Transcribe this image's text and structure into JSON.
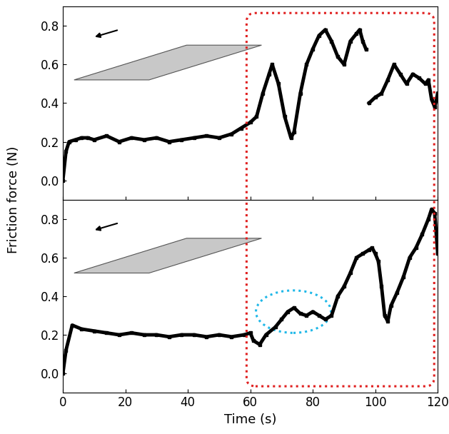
{
  "chart_data": [
    {
      "type": "line",
      "ylabel": "Friction force (N)",
      "tick_labels": "y",
      "color": "#000000",
      "marker": "square",
      "x": [
        0,
        1,
        2,
        4,
        6,
        8,
        10,
        14,
        18,
        22,
        26,
        30,
        34,
        38,
        42,
        46,
        50,
        54,
        57,
        60,
        62,
        64,
        66,
        67,
        69,
        71,
        73,
        74,
        76,
        78,
        80,
        82,
        84,
        86,
        88,
        90,
        92,
        94,
        95,
        96,
        97,
        97.5,
        98,
        100,
        102,
        104,
        106,
        108,
        110,
        112,
        114,
        116,
        117,
        118,
        119,
        120
      ],
      "values": [
        0.0,
        0.15,
        0.2,
        0.21,
        0.22,
        0.22,
        0.21,
        0.23,
        0.2,
        0.22,
        0.21,
        0.22,
        0.2,
        0.21,
        0.22,
        0.23,
        0.22,
        0.24,
        0.27,
        0.3,
        0.33,
        0.45,
        0.55,
        0.6,
        0.5,
        0.33,
        0.22,
        0.25,
        0.45,
        0.6,
        0.68,
        0.75,
        0.78,
        0.72,
        0.64,
        0.6,
        0.72,
        0.76,
        0.78,
        0.72,
        0.68,
        null,
        0.4,
        0.43,
        0.45,
        0.52,
        0.6,
        0.55,
        0.5,
        0.55,
        0.53,
        0.5,
        0.52,
        0.42,
        0.38,
        0.45
      ],
      "xlim": [
        0,
        120
      ],
      "ylim": [
        -0.1,
        0.9
      ],
      "xticks": [
        0,
        20,
        40,
        60,
        80,
        100,
        120
      ],
      "yticks": [
        {
          "value": 0.0,
          "label": "0.0"
        },
        0.2,
        0.4,
        0.6,
        0.8
      ]
    },
    {
      "type": "line",
      "xlabel": "Time (s)",
      "color": "#000000",
      "marker": "square",
      "x": [
        0,
        1,
        3,
        6,
        10,
        14,
        18,
        22,
        26,
        30,
        34,
        38,
        42,
        46,
        50,
        54,
        58,
        60,
        61,
        63,
        65,
        68,
        70,
        72,
        74,
        76,
        78,
        80,
        82,
        84,
        86,
        88,
        90,
        92,
        94,
        96,
        98,
        99,
        100,
        101,
        102,
        103,
        104,
        105,
        107,
        109,
        111,
        113,
        115,
        117,
        118,
        119,
        120
      ],
      "values": [
        0.0,
        0.12,
        0.25,
        0.23,
        0.22,
        0.21,
        0.2,
        0.21,
        0.2,
        0.2,
        0.19,
        0.2,
        0.2,
        0.19,
        0.2,
        0.19,
        0.2,
        0.21,
        0.17,
        0.15,
        0.2,
        0.24,
        0.28,
        0.32,
        0.34,
        0.31,
        0.3,
        0.32,
        0.3,
        0.28,
        0.3,
        0.4,
        0.45,
        0.52,
        0.6,
        0.62,
        0.64,
        0.65,
        0.62,
        0.58,
        0.45,
        0.3,
        0.27,
        0.35,
        0.42,
        0.5,
        0.6,
        0.65,
        0.72,
        0.8,
        0.85,
        0.83,
        0.62
      ],
      "xlim": [
        0,
        120
      ],
      "ylim": [
        -0.1,
        0.9
      ],
      "xticks": [
        0,
        20,
        40,
        60,
        80,
        100,
        120
      ],
      "yticks": [
        {
          "value": 0.0,
          "label": "0.0"
        },
        0.2,
        0.4,
        0.6,
        0.8
      ]
    }
  ]
}
